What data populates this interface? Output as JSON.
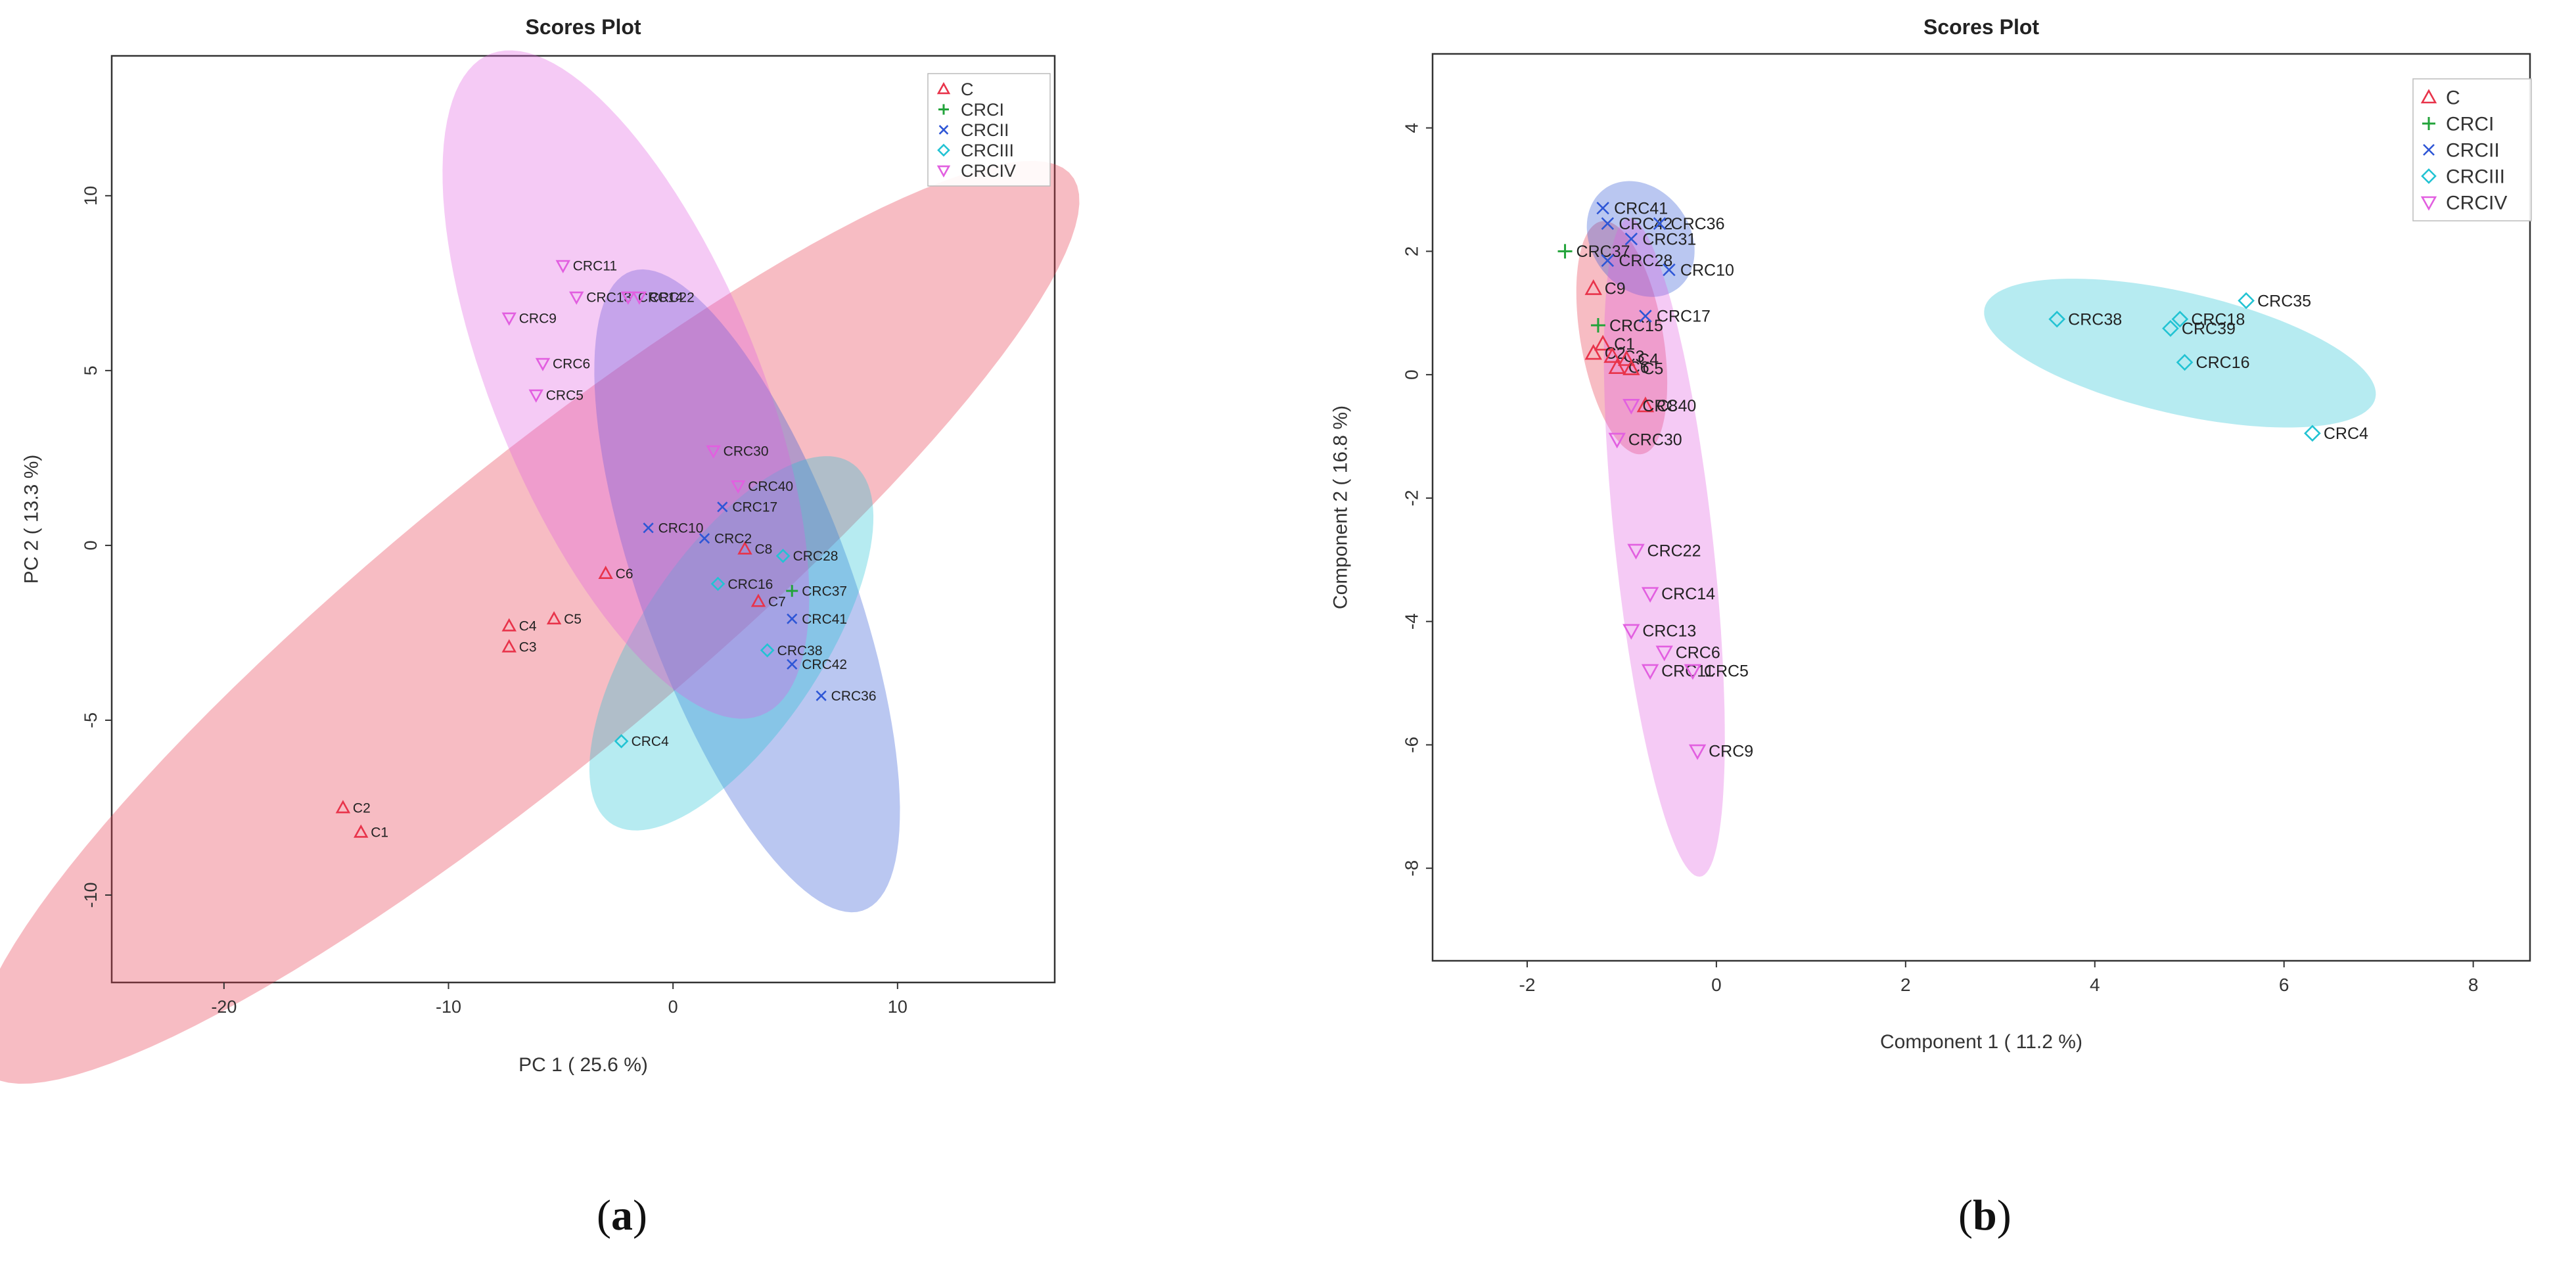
{
  "chart_data": [
    {
      "type": "scatter",
      "panel_label": "a",
      "title": "Scores Plot",
      "xlabel": "PC 1 ( 25.6 %)",
      "ylabel": "PC 2 ( 13.3 %)",
      "xlim": [
        -25,
        17
      ],
      "ylim": [
        -12.5,
        14
      ],
      "xticks": [
        {
          "value": -20,
          "label": "-20"
        },
        {
          "value": -10,
          "label": "-10"
        },
        {
          "value": 0,
          "label": "0"
        },
        {
          "value": 10,
          "label": "10"
        }
      ],
      "yticks": [
        {
          "value": -10,
          "label": "-10"
        },
        {
          "value": -5,
          "label": "-5"
        },
        {
          "value": 0,
          "label": "0"
        },
        {
          "value": 5,
          "label": "5"
        },
        {
          "value": 10,
          "label": "10"
        }
      ],
      "legend_position": "top-right",
      "series": [
        {
          "name": "C",
          "marker": "triangle-up",
          "color": "#e8334a",
          "ellipse": {
            "cx": -6.5,
            "cy": -2.2,
            "rx": 27.5,
            "ry": 4.8,
            "angle_deg": 27
          },
          "points": [
            {
              "x": -14.7,
              "y": -7.5,
              "label": "C2"
            },
            {
              "x": -13.9,
              "y": -8.2,
              "label": "C1"
            },
            {
              "x": -7.3,
              "y": -2.3,
              "label": "C4"
            },
            {
              "x": -7.3,
              "y": -2.9,
              "label": "C3"
            },
            {
              "x": -5.3,
              "y": -2.1,
              "label": "C5"
            },
            {
              "x": -3.0,
              "y": -0.8,
              "label": "C6"
            },
            {
              "x": 3.2,
              "y": -0.1,
              "label": "C8"
            },
            {
              "x": 3.8,
              "y": -1.6,
              "label": "C7"
            }
          ]
        },
        {
          "name": "CRCI",
          "marker": "plus",
          "color": "#22a33a",
          "ellipse": null,
          "points": [
            {
              "x": 5.3,
              "y": -1.3,
              "label": "CRC37"
            }
          ]
        },
        {
          "name": "CRCII",
          "marker": "x",
          "color": "#2e56d6",
          "ellipse": {
            "cx": 3.3,
            "cy": -1.3,
            "rx": 10.6,
            "ry": 4.3,
            "angle_deg": -57
          },
          "points": [
            {
              "x": -1.1,
              "y": 0.5,
              "label": "CRC10"
            },
            {
              "x": 1.4,
              "y": 0.2,
              "label": "CRC2"
            },
            {
              "x": 2.2,
              "y": 1.1,
              "label": "CRC17"
            },
            {
              "x": 5.3,
              "y": -2.1,
              "label": "CRC41"
            },
            {
              "x": 5.3,
              "y": -3.4,
              "label": "CRC42"
            },
            {
              "x": 6.6,
              "y": -4.3,
              "label": "CRC36"
            }
          ]
        },
        {
          "name": "CRCIII",
          "marker": "diamond",
          "color": "#22c3d3",
          "ellipse": {
            "cx": 2.6,
            "cy": -2.8,
            "rx": 7.6,
            "ry": 3.3,
            "angle_deg": 38
          },
          "points": [
            {
              "x": -2.3,
              "y": -5.6,
              "label": "CRC4"
            },
            {
              "x": 2.0,
              "y": -1.1,
              "label": "CRC16"
            },
            {
              "x": 4.2,
              "y": -3.0,
              "label": "CRC38"
            },
            {
              "x": 4.9,
              "y": -0.3,
              "label": "CRC28"
            }
          ]
        },
        {
          "name": "CRCIV",
          "marker": "triangle-down",
          "color": "#e25fe0",
          "ellipse": {
            "cx": -2.1,
            "cy": 4.6,
            "rx": 11.4,
            "ry": 5.3,
            "angle_deg": -52
          },
          "points": [
            {
              "x": -4.9,
              "y": 8.0,
              "label": "CRC11"
            },
            {
              "x": -4.3,
              "y": 7.1,
              "label": "CRC13"
            },
            {
              "x": -2.0,
              "y": 7.1,
              "label": "CRC14"
            },
            {
              "x": -1.5,
              "y": 7.1,
              "label": "CRC22"
            },
            {
              "x": -7.3,
              "y": 6.5,
              "label": "CRC9"
            },
            {
              "x": -5.8,
              "y": 5.2,
              "label": "CRC6"
            },
            {
              "x": -6.1,
              "y": 4.3,
              "label": "CRC5"
            },
            {
              "x": 1.8,
              "y": 2.7,
              "label": "CRC30"
            },
            {
              "x": 2.9,
              "y": 1.7,
              "label": "CRC40"
            }
          ]
        }
      ]
    },
    {
      "type": "scatter",
      "panel_label": "b",
      "title": "Scores Plot",
      "xlabel": "Component 1 ( 11.2 %)",
      "ylabel": "Component 2 ( 16.8 %)",
      "xlim": [
        -3.0,
        8.6
      ],
      "ylim": [
        -9.5,
        5.2
      ],
      "xticks": [
        {
          "value": -2,
          "label": "-2"
        },
        {
          "value": 0,
          "label": "0"
        },
        {
          "value": 2,
          "label": "2"
        },
        {
          "value": 4,
          "label": "4"
        },
        {
          "value": 6,
          "label": "6"
        },
        {
          "value": 8,
          "label": "8"
        }
      ],
      "yticks": [
        {
          "value": -8,
          "label": "-8"
        },
        {
          "value": -6,
          "label": "-6"
        },
        {
          "value": -4,
          "label": "-4"
        },
        {
          "value": -2,
          "label": "-2"
        },
        {
          "value": 0,
          "label": "0"
        },
        {
          "value": 2,
          "label": "2"
        },
        {
          "value": 4,
          "label": "4"
        }
      ],
      "legend_position": "top-right",
      "series": [
        {
          "name": "C",
          "marker": "triangle-up",
          "color": "#e8334a",
          "ellipse": {
            "cx": -1.0,
            "cy": 0.6,
            "rx": 1.9,
            "ry": 0.44,
            "angle_deg": -84
          },
          "points": [
            {
              "x": -1.3,
              "y": 1.4,
              "label": "C9"
            },
            {
              "x": -1.2,
              "y": 0.5,
              "label": "C1"
            },
            {
              "x": -1.3,
              "y": 0.35,
              "label": "C2"
            },
            {
              "x": -1.1,
              "y": 0.3,
              "label": "C3"
            },
            {
              "x": -0.95,
              "y": 0.25,
              "label": "C4"
            },
            {
              "x": -1.05,
              "y": 0.12,
              "label": "C6"
            },
            {
              "x": -0.9,
              "y": 0.1,
              "label": "C5"
            },
            {
              "x": -0.75,
              "y": -0.5,
              "label": "C8"
            }
          ]
        },
        {
          "name": "CRCI",
          "marker": "plus",
          "color": "#22a33a",
          "ellipse": null,
          "points": [
            {
              "x": -1.6,
              "y": 2.0,
              "label": "CRC37"
            },
            {
              "x": -1.25,
              "y": 0.8,
              "label": "CRC15"
            }
          ]
        },
        {
          "name": "CRCII",
          "marker": "x",
          "color": "#2e56d6",
          "ellipse": {
            "cx": -0.8,
            "cy": 2.2,
            "rx": 0.95,
            "ry": 0.55,
            "angle_deg": -79
          },
          "points": [
            {
              "x": -1.2,
              "y": 2.7,
              "label": "CRC41"
            },
            {
              "x": -1.15,
              "y": 2.45,
              "label": "CRC42"
            },
            {
              "x": -0.6,
              "y": 2.45,
              "label": "CRC36"
            },
            {
              "x": -0.9,
              "y": 2.2,
              "label": "CRC31"
            },
            {
              "x": -1.15,
              "y": 1.85,
              "label": "CRC28"
            },
            {
              "x": -0.5,
              "y": 1.7,
              "label": "CRC10"
            },
            {
              "x": -0.75,
              "y": 0.95,
              "label": "CRC17"
            }
          ]
        },
        {
          "name": "CRCIII",
          "marker": "diamond",
          "color": "#22c3d3",
          "ellipse": {
            "cx": 4.9,
            "cy": 0.35,
            "rx": 2.2,
            "ry": 0.95,
            "angle_deg": -22
          },
          "points": [
            {
              "x": 3.6,
              "y": 0.9,
              "label": "CRC38"
            },
            {
              "x": 5.6,
              "y": 1.2,
              "label": "CRC35"
            },
            {
              "x": 4.9,
              "y": 0.9,
              "label": "CRC18"
            },
            {
              "x": 4.8,
              "y": 0.75,
              "label": "CRC39"
            },
            {
              "x": 4.95,
              "y": 0.2,
              "label": "CRC16"
            },
            {
              "x": 6.3,
              "y": -0.95,
              "label": "CRC4"
            }
          ]
        },
        {
          "name": "CRCIV",
          "marker": "triangle-down",
          "color": "#e25fe0",
          "ellipse": {
            "cx": -0.55,
            "cy": -2.8,
            "rx": 5.35,
            "ry": 0.52,
            "angle_deg": -86
          },
          "points": [
            {
              "x": -0.9,
              "y": -0.5,
              "label": "CRC40"
            },
            {
              "x": -1.05,
              "y": -1.05,
              "label": "CRC30"
            },
            {
              "x": -0.85,
              "y": -2.85,
              "label": "CRC22"
            },
            {
              "x": -0.7,
              "y": -3.55,
              "label": "CRC14"
            },
            {
              "x": -0.9,
              "y": -4.15,
              "label": "CRC13"
            },
            {
              "x": -0.55,
              "y": -4.5,
              "label": "CRC6"
            },
            {
              "x": -0.7,
              "y": -4.8,
              "label": "CRC11"
            },
            {
              "x": -0.25,
              "y": -4.8,
              "label": "CRC5"
            },
            {
              "x": -0.2,
              "y": -6.1,
              "label": "CRC9"
            }
          ]
        }
      ]
    }
  ]
}
